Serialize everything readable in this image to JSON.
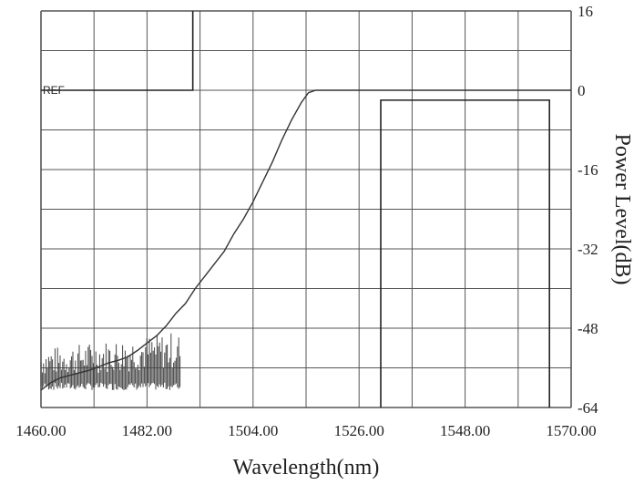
{
  "chart_data": {
    "type": "line",
    "xlabel": "Wavelength(nm)",
    "ylabel": "Power Level(dB)",
    "xlim": [
      1460,
      1570
    ],
    "ylim": [
      -64,
      16
    ],
    "x_ticks": [
      "1460.00",
      "1482.00",
      "1504.00",
      "1526.00",
      "1548.00",
      "1570.00"
    ],
    "y_ticks": [
      "16",
      "0",
      "-16",
      "-32",
      "-48",
      "-64"
    ],
    "ref_label": "REF",
    "grid": true,
    "series": [
      {
        "values": [
          [
            1460.0,
            -60.5
          ],
          [
            1462.0,
            -59.0
          ],
          [
            1464.0,
            -58.0
          ],
          [
            1466.0,
            -57.5
          ],
          [
            1468.0,
            -57.0
          ],
          [
            1470.0,
            -56.5
          ],
          [
            1472.0,
            -55.8
          ],
          [
            1474.0,
            -55.0
          ],
          [
            1476.0,
            -54.5
          ],
          [
            1478.0,
            -53.8
          ],
          [
            1480.0,
            -52.5
          ],
          [
            1482.0,
            -51.0
          ],
          [
            1484.0,
            -49.5
          ],
          [
            1486.0,
            -47.5
          ],
          [
            1488.0,
            -45.0
          ],
          [
            1490.0,
            -43.0
          ],
          [
            1492.0,
            -40.0
          ],
          [
            1494.0,
            -37.5
          ],
          [
            1496.0,
            -35.0
          ],
          [
            1498.0,
            -32.5
          ],
          [
            1500.0,
            -29.0
          ],
          [
            1502.0,
            -26.0
          ],
          [
            1504.0,
            -22.5
          ],
          [
            1506.0,
            -18.5
          ],
          [
            1508.0,
            -14.5
          ],
          [
            1510.0,
            -10.0
          ],
          [
            1512.0,
            -6.0
          ],
          [
            1514.0,
            -2.5
          ],
          [
            1515.5,
            -0.5
          ],
          [
            1517.0,
            0.0
          ],
          [
            1530.0,
            0.0
          ],
          [
            1545.0,
            0.0
          ],
          [
            1560.0,
            0.0
          ],
          [
            1570.0,
            0.0
          ]
        ]
      }
    ],
    "filter_window": {
      "x_start": 1460.0,
      "x_end": 1491.5,
      "level": 0,
      "note": "vertical edge at ~1491.5 rising to top"
    },
    "passband_window": {
      "x_start": 1530.5,
      "x_end": 1565.5,
      "top": -2
    },
    "noise_region": {
      "x_start": 1460.0,
      "x_end": 1489.0,
      "min": -60.5,
      "max": -48.5
    }
  }
}
